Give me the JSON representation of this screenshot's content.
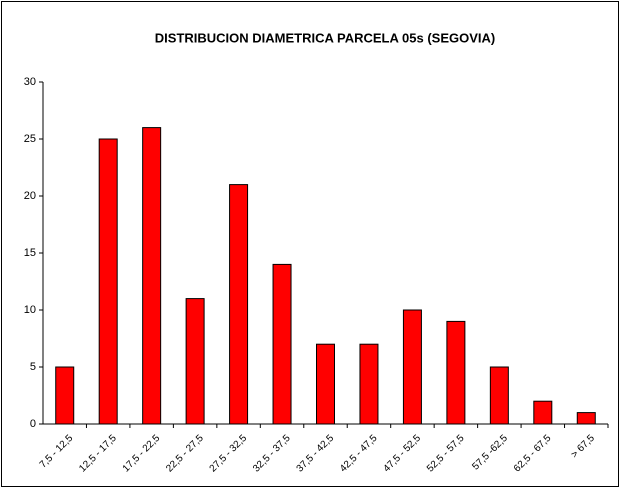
{
  "chart_data": {
    "type": "bar",
    "title": "DISTRIBUCION DIAMETRICA PARCELA 05s (SEGOVIA)",
    "categories": [
      "7,5 - 12,5",
      "12,5 - 17,5",
      "17,5 - 22,5",
      "22,5 - 27,5",
      "27,5 - 32,5",
      "32,5 - 37,5",
      "37,5 - 42,5",
      "42,5 - 47,5",
      "47,5 - 52,5",
      "52,5 - 57,5",
      "57,5 -62,5",
      "62,5 - 67,5",
      "> 67,5"
    ],
    "values": [
      5,
      25,
      26,
      11,
      21,
      14,
      7,
      7,
      10,
      9,
      5,
      2,
      1
    ],
    "color": "#ff0000",
    "ylim": [
      0,
      30
    ],
    "yticks": [
      0,
      5,
      10,
      15,
      20,
      25,
      30
    ],
    "grid": false
  }
}
